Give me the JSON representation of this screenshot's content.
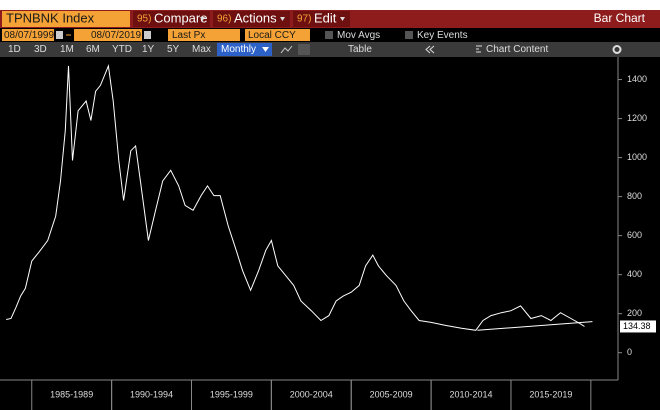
{
  "toolbar": {
    "ticker": "TPNBNK Index",
    "buttons": [
      {
        "number": "95)",
        "label": "Compare"
      },
      {
        "number": "96)",
        "label": "Actions"
      },
      {
        "number": "97)",
        "label": "Edit"
      }
    ],
    "title": "Bar Chart"
  },
  "controls": {
    "start": "08/07/1999",
    "end": "08/07/2019",
    "field": "Last Px",
    "currency": "Local CCY",
    "options": [
      "Mov Avgs",
      "Key Events"
    ]
  },
  "periods": [
    "1D",
    "3D",
    "1M",
    "6M",
    "YTD",
    "1Y",
    "5Y",
    "Max"
  ],
  "frequency": "Monthly",
  "table": "Table",
  "chart_content": "Chart Content",
  "chart_data": {
    "type": "line",
    "grid": false,
    "xlim": [
      1983.2,
      2021.7
    ],
    "ylim": [
      -140,
      1490
    ],
    "xticks": [
      {
        "value": 1987.5,
        "label": "1985-1989"
      },
      {
        "value": 1992.5,
        "label": "1990-1994"
      },
      {
        "value": 1997.5,
        "label": "1995-1999"
      },
      {
        "value": 2002.5,
        "label": "2000-2004"
      },
      {
        "value": 2007.5,
        "label": "2005-2009"
      },
      {
        "value": 2012.5,
        "label": "2010-2014"
      },
      {
        "value": 2017.5,
        "label": "2015-2019"
      }
    ],
    "yticks": [
      0,
      200,
      400,
      600,
      800,
      1000,
      1200,
      1400
    ],
    "series": [
      {
        "color": "#ffffff",
        "x": [
          1983.4,
          1983.7,
          1984.0,
          1984.3,
          1984.6,
          1985.0,
          1985.5,
          1986.0,
          1986.5,
          1986.8,
          1987.1,
          1987.3,
          1987.55,
          1987.9,
          1988.4,
          1988.7,
          1989.0,
          1989.3,
          1989.8,
          1990.1,
          1990.45,
          1990.75,
          1991.2,
          1991.5,
          1991.8,
          1992.3,
          1992.75,
          1993.2,
          1993.7,
          1994.2,
          1994.6,
          1995.1,
          1995.6,
          1996.0,
          1996.4,
          1996.8,
          1997.3,
          1997.8,
          1998.2,
          1998.7,
          1999.2,
          1999.65,
          2000.0,
          2000.4,
          2000.9,
          2001.4,
          2001.85,
          2002.5,
          2003.1,
          2003.6,
          2004.05,
          2004.5,
          2005.0,
          2005.5,
          2005.9,
          2006.35,
          2006.7,
          2007.2,
          2007.8,
          2008.3,
          2008.75,
          2009.25,
          2010.0,
          2010.9,
          2011.9,
          2012.8,
          2013.25,
          2013.75,
          2014.4,
          2015.0,
          2015.6,
          2016.25,
          2016.9,
          2017.5,
          2018.1,
          2018.75,
          2019.3,
          2019.6
        ],
        "values": [
          170,
          175,
          230,
          290,
          330,
          470,
          520,
          575,
          700,
          880,
          1140,
          1470,
          985,
          1240,
          1290,
          1190,
          1340,
          1370,
          1470,
          1290,
          985,
          780,
          1035,
          1060,
          880,
          575,
          730,
          880,
          935,
          855,
          755,
          730,
          805,
          855,
          805,
          805,
          650,
          525,
          420,
          320,
          420,
          525,
          575,
          445,
          395,
          345,
          265,
          215,
          165,
          190,
          265,
          290,
          310,
          345,
          445,
          500,
          445,
          395,
          345,
          265,
          215,
          165,
          155,
          140,
          125,
          115,
          165,
          190,
          205,
          215,
          240,
          175,
          190,
          165,
          205,
          175,
          150,
          134.38
        ]
      }
    ],
    "trendline": {
      "x": [
        2012.9,
        2020.1
      ],
      "values": [
        115,
        159
      ]
    },
    "last_price": 134.38
  }
}
